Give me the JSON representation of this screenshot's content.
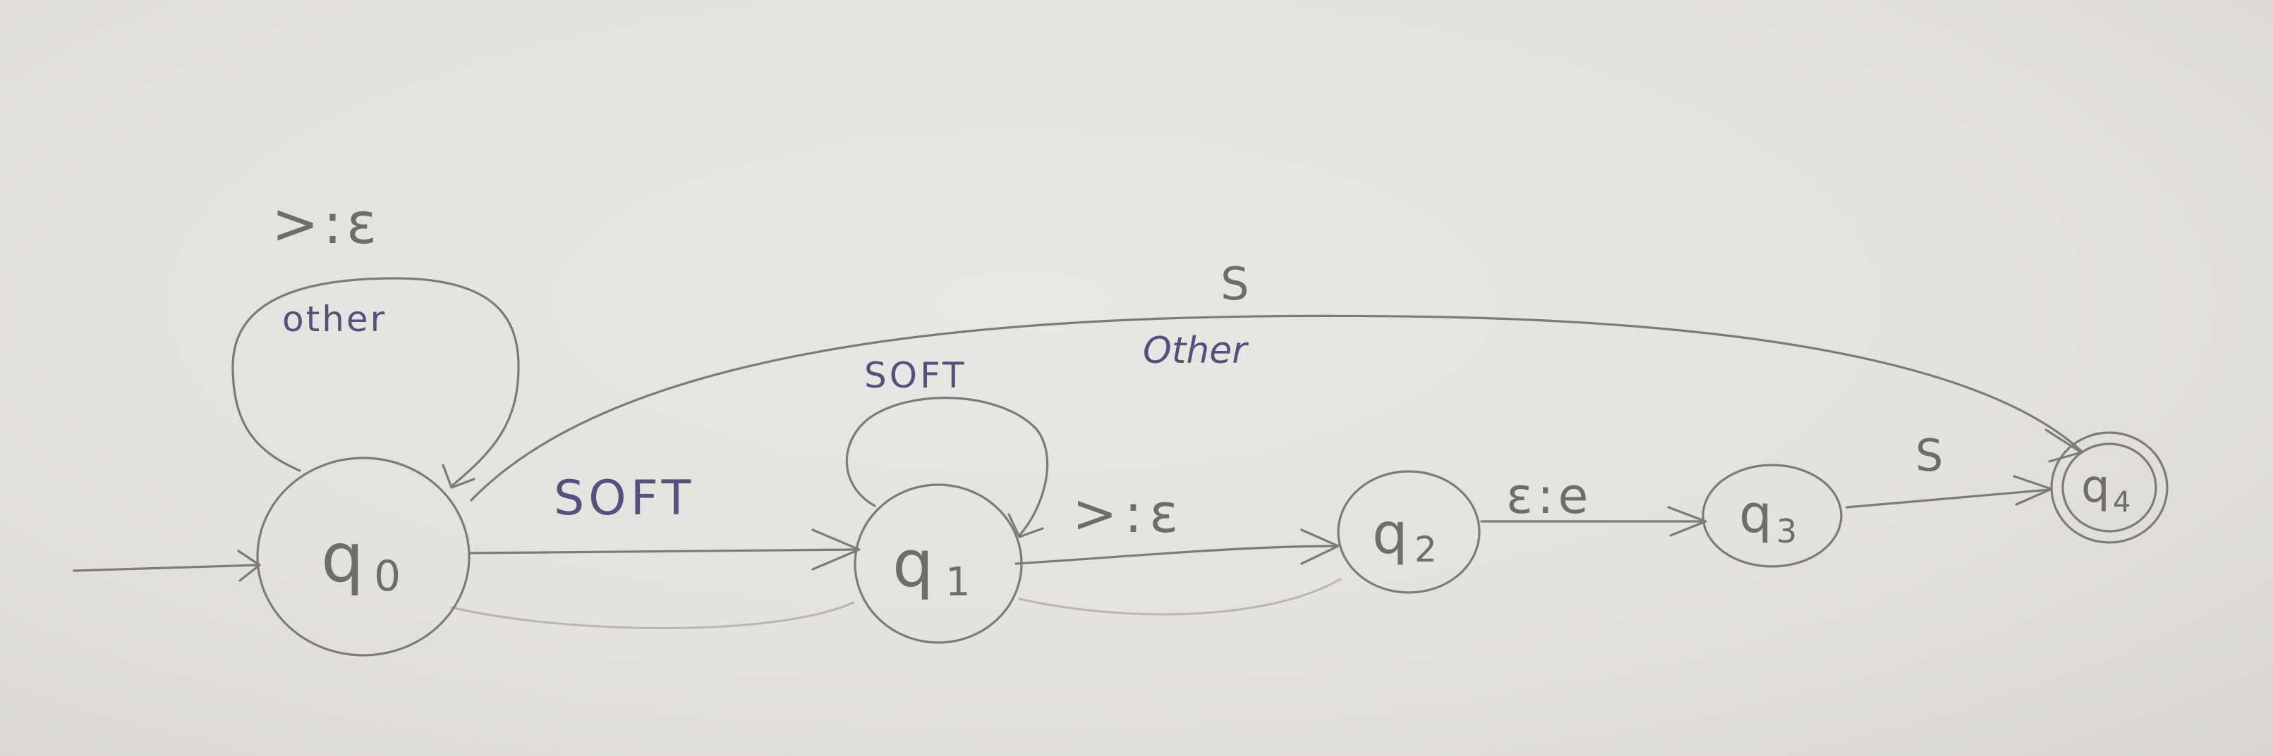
{
  "diagram": {
    "states": [
      {
        "id": "q0",
        "label": "q",
        "sub": "0",
        "accepting": false,
        "initial": true
      },
      {
        "id": "q1",
        "label": "q",
        "sub": "1",
        "accepting": false,
        "initial": false
      },
      {
        "id": "q2",
        "label": "q",
        "sub": "2",
        "accepting": false,
        "initial": false
      },
      {
        "id": "q3",
        "label": "q",
        "sub": "3",
        "accepting": false,
        "initial": false
      },
      {
        "id": "q4",
        "label": "q",
        "sub": "4",
        "accepting": true,
        "initial": false
      }
    ],
    "transitions": {
      "q0_loop_top": ">:ε",
      "q0_loop_inner": "other",
      "q0_to_q4_top": "S",
      "q0_to_q4_inner": "Other",
      "q1_loop": "SOFT",
      "q0_to_q1": "SOFT",
      "q1_to_q2": ">:ε",
      "q2_to_q3": "ε:e",
      "q3_to_q4": "S"
    }
  }
}
